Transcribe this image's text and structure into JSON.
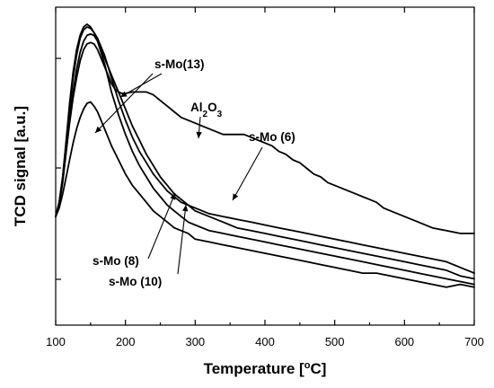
{
  "chart_data": {
    "type": "line",
    "xlabel": "Temperature [",
    "xlabel_sup": "o",
    "xlabel_tail": "C]",
    "ylabel": "TCD signal [a.u.]",
    "xlim": [
      100,
      700
    ],
    "ylim": [
      0,
      1
    ],
    "xticks": [
      100,
      200,
      300,
      400,
      500,
      600,
      700
    ],
    "series": [
      {
        "name": "Al2O3",
        "x": [
          100,
          105,
          110,
          115,
          120,
          125,
          130,
          135,
          140,
          145,
          150,
          155,
          160,
          165,
          170,
          175,
          180,
          185,
          190,
          195,
          200,
          210,
          220,
          230,
          240,
          250,
          260,
          270,
          280,
          290,
          300,
          310,
          320,
          330,
          340,
          350,
          360,
          370,
          380,
          390,
          400,
          410,
          420,
          430,
          440,
          450,
          460,
          470,
          480,
          490,
          500,
          510,
          520,
          530,
          540,
          550,
          560,
          570,
          580,
          590,
          600,
          620,
          640,
          660,
          680,
          700
        ],
        "y": [
          0.33,
          0.38,
          0.46,
          0.56,
          0.66,
          0.75,
          0.82,
          0.88,
          0.92,
          0.94,
          0.945,
          0.94,
          0.92,
          0.89,
          0.86,
          0.83,
          0.8,
          0.78,
          0.77,
          0.765,
          0.765,
          0.77,
          0.77,
          0.77,
          0.76,
          0.74,
          0.72,
          0.7,
          0.68,
          0.67,
          0.66,
          0.65,
          0.64,
          0.63,
          0.62,
          0.62,
          0.62,
          0.62,
          0.61,
          0.6,
          0.59,
          0.58,
          0.56,
          0.55,
          0.53,
          0.52,
          0.5,
          0.48,
          0.47,
          0.45,
          0.44,
          0.43,
          0.42,
          0.41,
          0.4,
          0.39,
          0.38,
          0.36,
          0.35,
          0.34,
          0.33,
          0.31,
          0.29,
          0.28,
          0.27,
          0.27
        ]
      },
      {
        "name": "s-Mo (6)",
        "x": [
          100,
          105,
          110,
          115,
          120,
          125,
          130,
          135,
          140,
          145,
          150,
          155,
          160,
          165,
          170,
          175,
          180,
          190,
          200,
          210,
          220,
          230,
          240,
          250,
          260,
          270,
          280,
          290,
          300,
          320,
          340,
          360,
          380,
          400,
          420,
          440,
          460,
          480,
          500,
          520,
          540,
          560,
          580,
          600,
          620,
          640,
          660,
          680,
          700
        ],
        "y": [
          0.33,
          0.38,
          0.47,
          0.59,
          0.71,
          0.82,
          0.9,
          0.96,
          0.99,
          1.0,
          0.995,
          0.98,
          0.96,
          0.93,
          0.9,
          0.86,
          0.82,
          0.74,
          0.67,
          0.61,
          0.56,
          0.52,
          0.48,
          0.45,
          0.42,
          0.4,
          0.38,
          0.37,
          0.36,
          0.34,
          0.33,
          0.32,
          0.31,
          0.3,
          0.29,
          0.28,
          0.27,
          0.26,
          0.25,
          0.24,
          0.23,
          0.22,
          0.21,
          0.2,
          0.19,
          0.18,
          0.17,
          0.15,
          0.13
        ]
      },
      {
        "name": "s-Mo (8)",
        "x": [
          100,
          105,
          110,
          115,
          120,
          125,
          130,
          135,
          140,
          145,
          150,
          155,
          160,
          165,
          170,
          175,
          180,
          190,
          200,
          210,
          220,
          230,
          240,
          250,
          260,
          270,
          280,
          290,
          300,
          320,
          340,
          360,
          380,
          400,
          420,
          440,
          460,
          480,
          500,
          520,
          540,
          560,
          580,
          600,
          620,
          640,
          660,
          680,
          700
        ],
        "y": [
          0.33,
          0.38,
          0.47,
          0.6,
          0.73,
          0.84,
          0.92,
          0.97,
          1.0,
          1.01,
          1.0,
          0.98,
          0.95,
          0.91,
          0.87,
          0.82,
          0.77,
          0.69,
          0.62,
          0.56,
          0.51,
          0.47,
          0.43,
          0.4,
          0.37,
          0.35,
          0.33,
          0.31,
          0.3,
          0.28,
          0.27,
          0.26,
          0.25,
          0.24,
          0.23,
          0.22,
          0.21,
          0.2,
          0.19,
          0.18,
          0.17,
          0.16,
          0.15,
          0.14,
          0.13,
          0.12,
          0.11,
          0.1,
          0.09
        ]
      },
      {
        "name": "s-Mo (10)",
        "x": [
          100,
          105,
          110,
          115,
          120,
          125,
          130,
          135,
          140,
          145,
          150,
          155,
          160,
          165,
          170,
          175,
          180,
          190,
          200,
          210,
          220,
          230,
          240,
          250,
          260,
          270,
          280,
          290,
          300,
          320,
          340,
          360,
          380,
          400,
          420,
          440,
          460,
          480,
          500,
          520,
          540,
          560,
          580,
          600,
          620,
          640,
          660,
          680,
          700
        ],
        "y": [
          0.33,
          0.37,
          0.45,
          0.56,
          0.67,
          0.77,
          0.85,
          0.91,
          0.95,
          0.97,
          0.975,
          0.97,
          0.95,
          0.92,
          0.89,
          0.86,
          0.83,
          0.77,
          0.71,
          0.65,
          0.6,
          0.55,
          0.51,
          0.47,
          0.44,
          0.41,
          0.39,
          0.37,
          0.35,
          0.33,
          0.31,
          0.29,
          0.28,
          0.27,
          0.26,
          0.25,
          0.24,
          0.23,
          0.22,
          0.21,
          0.2,
          0.19,
          0.18,
          0.17,
          0.16,
          0.15,
          0.14,
          0.12,
          0.11
        ]
      },
      {
        "name": "s-Mo(13)",
        "x": [
          100,
          105,
          110,
          115,
          120,
          125,
          130,
          135,
          140,
          145,
          150,
          155,
          160,
          165,
          170,
          175,
          180,
          190,
          200,
          210,
          220,
          230,
          240,
          250,
          260,
          270,
          280,
          290,
          300,
          320,
          340,
          360,
          380,
          400,
          420,
          440,
          460,
          480,
          500,
          520,
          540,
          560,
          580,
          600,
          620,
          640,
          660,
          680,
          700
        ],
        "y": [
          0.33,
          0.36,
          0.41,
          0.47,
          0.53,
          0.59,
          0.64,
          0.68,
          0.71,
          0.73,
          0.735,
          0.72,
          0.7,
          0.67,
          0.64,
          0.61,
          0.58,
          0.53,
          0.48,
          0.44,
          0.41,
          0.38,
          0.35,
          0.33,
          0.31,
          0.29,
          0.28,
          0.27,
          0.25,
          0.24,
          0.23,
          0.22,
          0.21,
          0.2,
          0.19,
          0.18,
          0.17,
          0.16,
          0.15,
          0.14,
          0.13,
          0.13,
          0.12,
          0.11,
          0.1,
          0.09,
          0.08,
          0.09,
          0.08
        ]
      }
    ],
    "annotations": [
      {
        "label": "s-Mo(13)"
      },
      {
        "label": "Al",
        "sub1": "2",
        "mid": "O",
        "sub2": "3"
      },
      {
        "label": "s-Mo (6)"
      },
      {
        "label": "s-Mo (8)"
      },
      {
        "label": "s-Mo (10)"
      }
    ]
  }
}
